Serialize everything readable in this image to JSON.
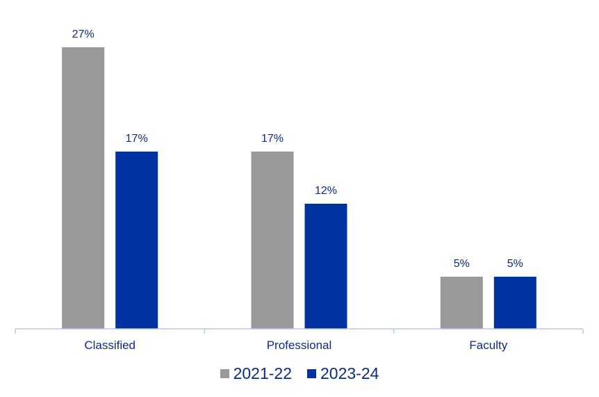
{
  "chart_data": {
    "type": "bar",
    "categories": [
      "Classified",
      "Professional",
      "Faculty"
    ],
    "series": [
      {
        "name": "2021-22",
        "values": [
          27,
          17,
          5
        ],
        "labels": [
          "27%",
          "17%",
          "5%"
        ],
        "color": "#999999"
      },
      {
        "name": "2023-24",
        "values": [
          17,
          12,
          5
        ],
        "labels": [
          "17%",
          "12%",
          "5%"
        ],
        "color": "#0033a0"
      }
    ],
    "title": "",
    "xlabel": "",
    "ylabel": "",
    "ylim": [
      0,
      27
    ],
    "unit": "%",
    "grid": false,
    "legend": "bottom",
    "axis_color": "#b8c8e6",
    "label_color": "#0a2a8c"
  }
}
